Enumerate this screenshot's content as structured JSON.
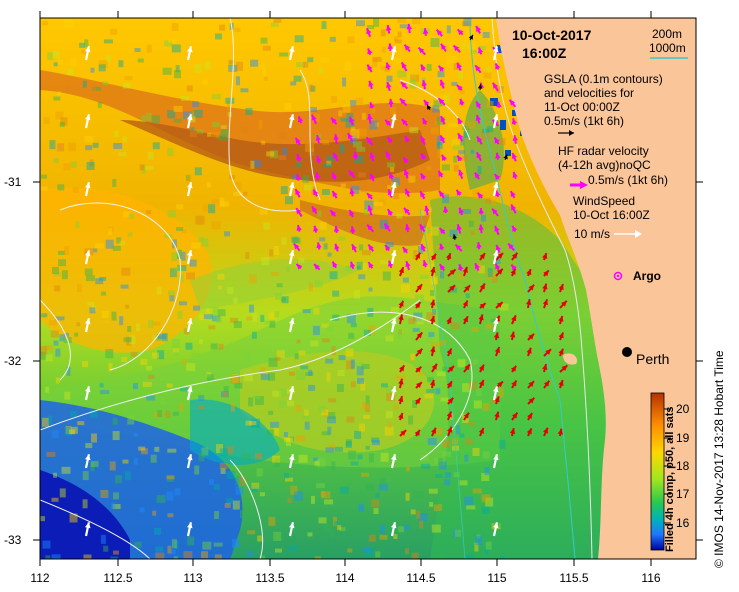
{
  "header": {
    "date": "10-Oct-2017",
    "time": "16:00Z"
  },
  "legend": {
    "contour_200": "200m",
    "contour_1000": "1000m",
    "gsla_lines": [
      "GSLA (0.1m contours)",
      "and velocities for",
      "11-Oct 00:00Z",
      "0.5m/s (1kt 6h)"
    ],
    "hf_lines": [
      "HF radar velocity",
      "(4-12h avg)noQC",
      "0.5m/s (1kt 6h)"
    ],
    "wind_lines": [
      "WindSpeed",
      "10-Oct 16:00Z",
      "10 m/s"
    ],
    "argo": "Argo",
    "colors": {
      "gsla_arrow": "#000000",
      "hf_arrow": "#ff00ff",
      "wind_arrow": "#ffffff",
      "contour_200": "#e8e8e8",
      "contour_1000": "#33cccc",
      "land": "#fbc59a",
      "argo": "#ff00ff"
    }
  },
  "places": {
    "city": "Perth"
  },
  "axes": {
    "x_ticks": [
      "112",
      "112.5",
      "113",
      "113.5",
      "114",
      "114.5",
      "115",
      "115.5",
      "116"
    ],
    "y_ticks": [
      "-31",
      "-32",
      "-33"
    ]
  },
  "colorbar": {
    "title": "Filled 4h comp, p50, all sats",
    "ticks": [
      "20",
      "19",
      "18",
      "17",
      "16"
    ],
    "stops": [
      "#c83200",
      "#ff8c00",
      "#ffd200",
      "#c8e600",
      "#32c832",
      "#00b4b4",
      "#0064ff",
      "#0000b4"
    ]
  },
  "credit": "© IMOS 14-Nov-2017 13:28 Hobart Time",
  "icons": [
    "argo-float-icon",
    "perth-city-icon",
    "wind-arrow-icon",
    "hf-radar-arrow-icon",
    "gsla-arrow-icon"
  ]
}
